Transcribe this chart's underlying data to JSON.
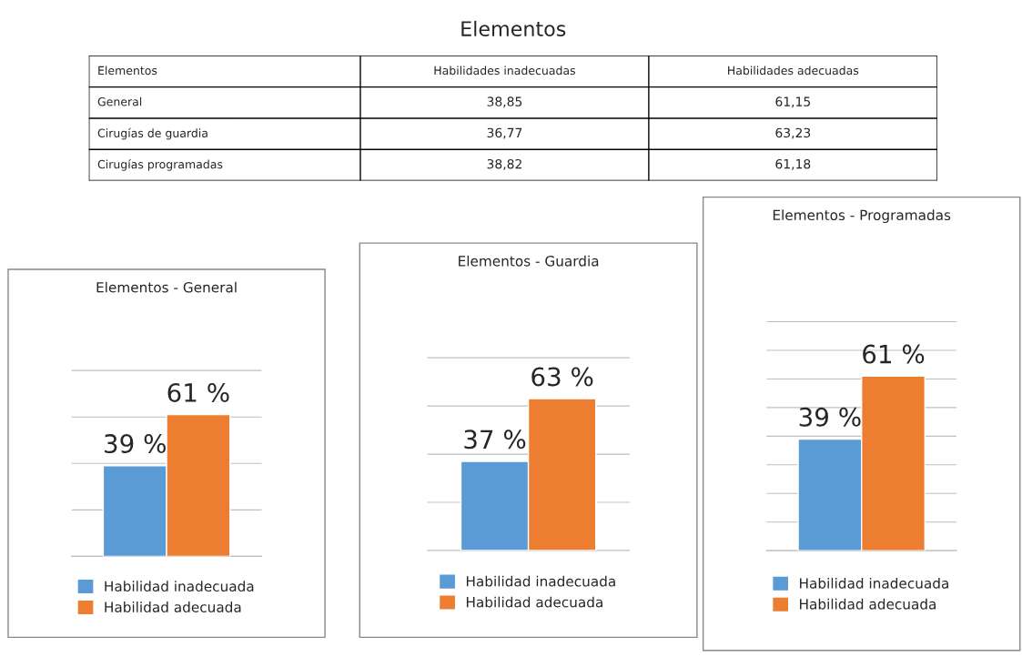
{
  "chart_data": [
    {
      "type": "other",
      "title": "Elementos",
      "categories": [
        "Elementos",
        "Habilidades inadecuadas",
        "Habilidades adecuadas"
      ],
      "annotations": [
        "General",
        "38,85",
        "61,15",
        "Cirugías de guardia",
        "36,77",
        "63,23",
        "Cirugías programadas",
        "38,82",
        "61,18"
      ]
    },
    {
      "type": "bar",
      "title": "Elementos - General",
      "categories": [
        null
      ],
      "grid": "y",
      "tick_labels": false,
      "legend": "bottom",
      "series": [
        {
          "name": "Habilidad inadecuada",
          "color": "#5b9bd5",
          "values": [
            39
          ],
          "value_labels": [
            "39 %"
          ]
        },
        {
          "name": "Habilidad adecuada",
          "color": "#ed7d31",
          "values": [
            61
          ],
          "value_labels": [
            "61 %"
          ]
        }
      ]
    },
    {
      "type": "bar",
      "title": "Elementos - Guardia",
      "categories": [
        null
      ],
      "grid": "y",
      "tick_labels": false,
      "legend": "bottom",
      "series": [
        {
          "name": "Habilidad inadecuada",
          "color": "#5b9bd5",
          "values": [
            37
          ],
          "value_labels": [
            "37 %"
          ]
        },
        {
          "name": "Habilidad adecuada",
          "color": "#ed7d31",
          "values": [
            63
          ],
          "value_labels": [
            "63 %"
          ]
        }
      ]
    },
    {
      "type": "bar",
      "title": "Elementos - Programadas",
      "categories": [
        null
      ],
      "grid": "y",
      "tick_labels": false,
      "legend": "bottom",
      "series": [
        {
          "name": "Habilidad inadecuada",
          "color": "#5b9bd5",
          "values": [
            39
          ],
          "value_labels": [
            "39 %"
          ]
        },
        {
          "name": "Habilidad adecuada",
          "color": "#ed7d31",
          "values": [
            61
          ],
          "value_labels": [
            "61 %"
          ]
        }
      ]
    }
  ]
}
